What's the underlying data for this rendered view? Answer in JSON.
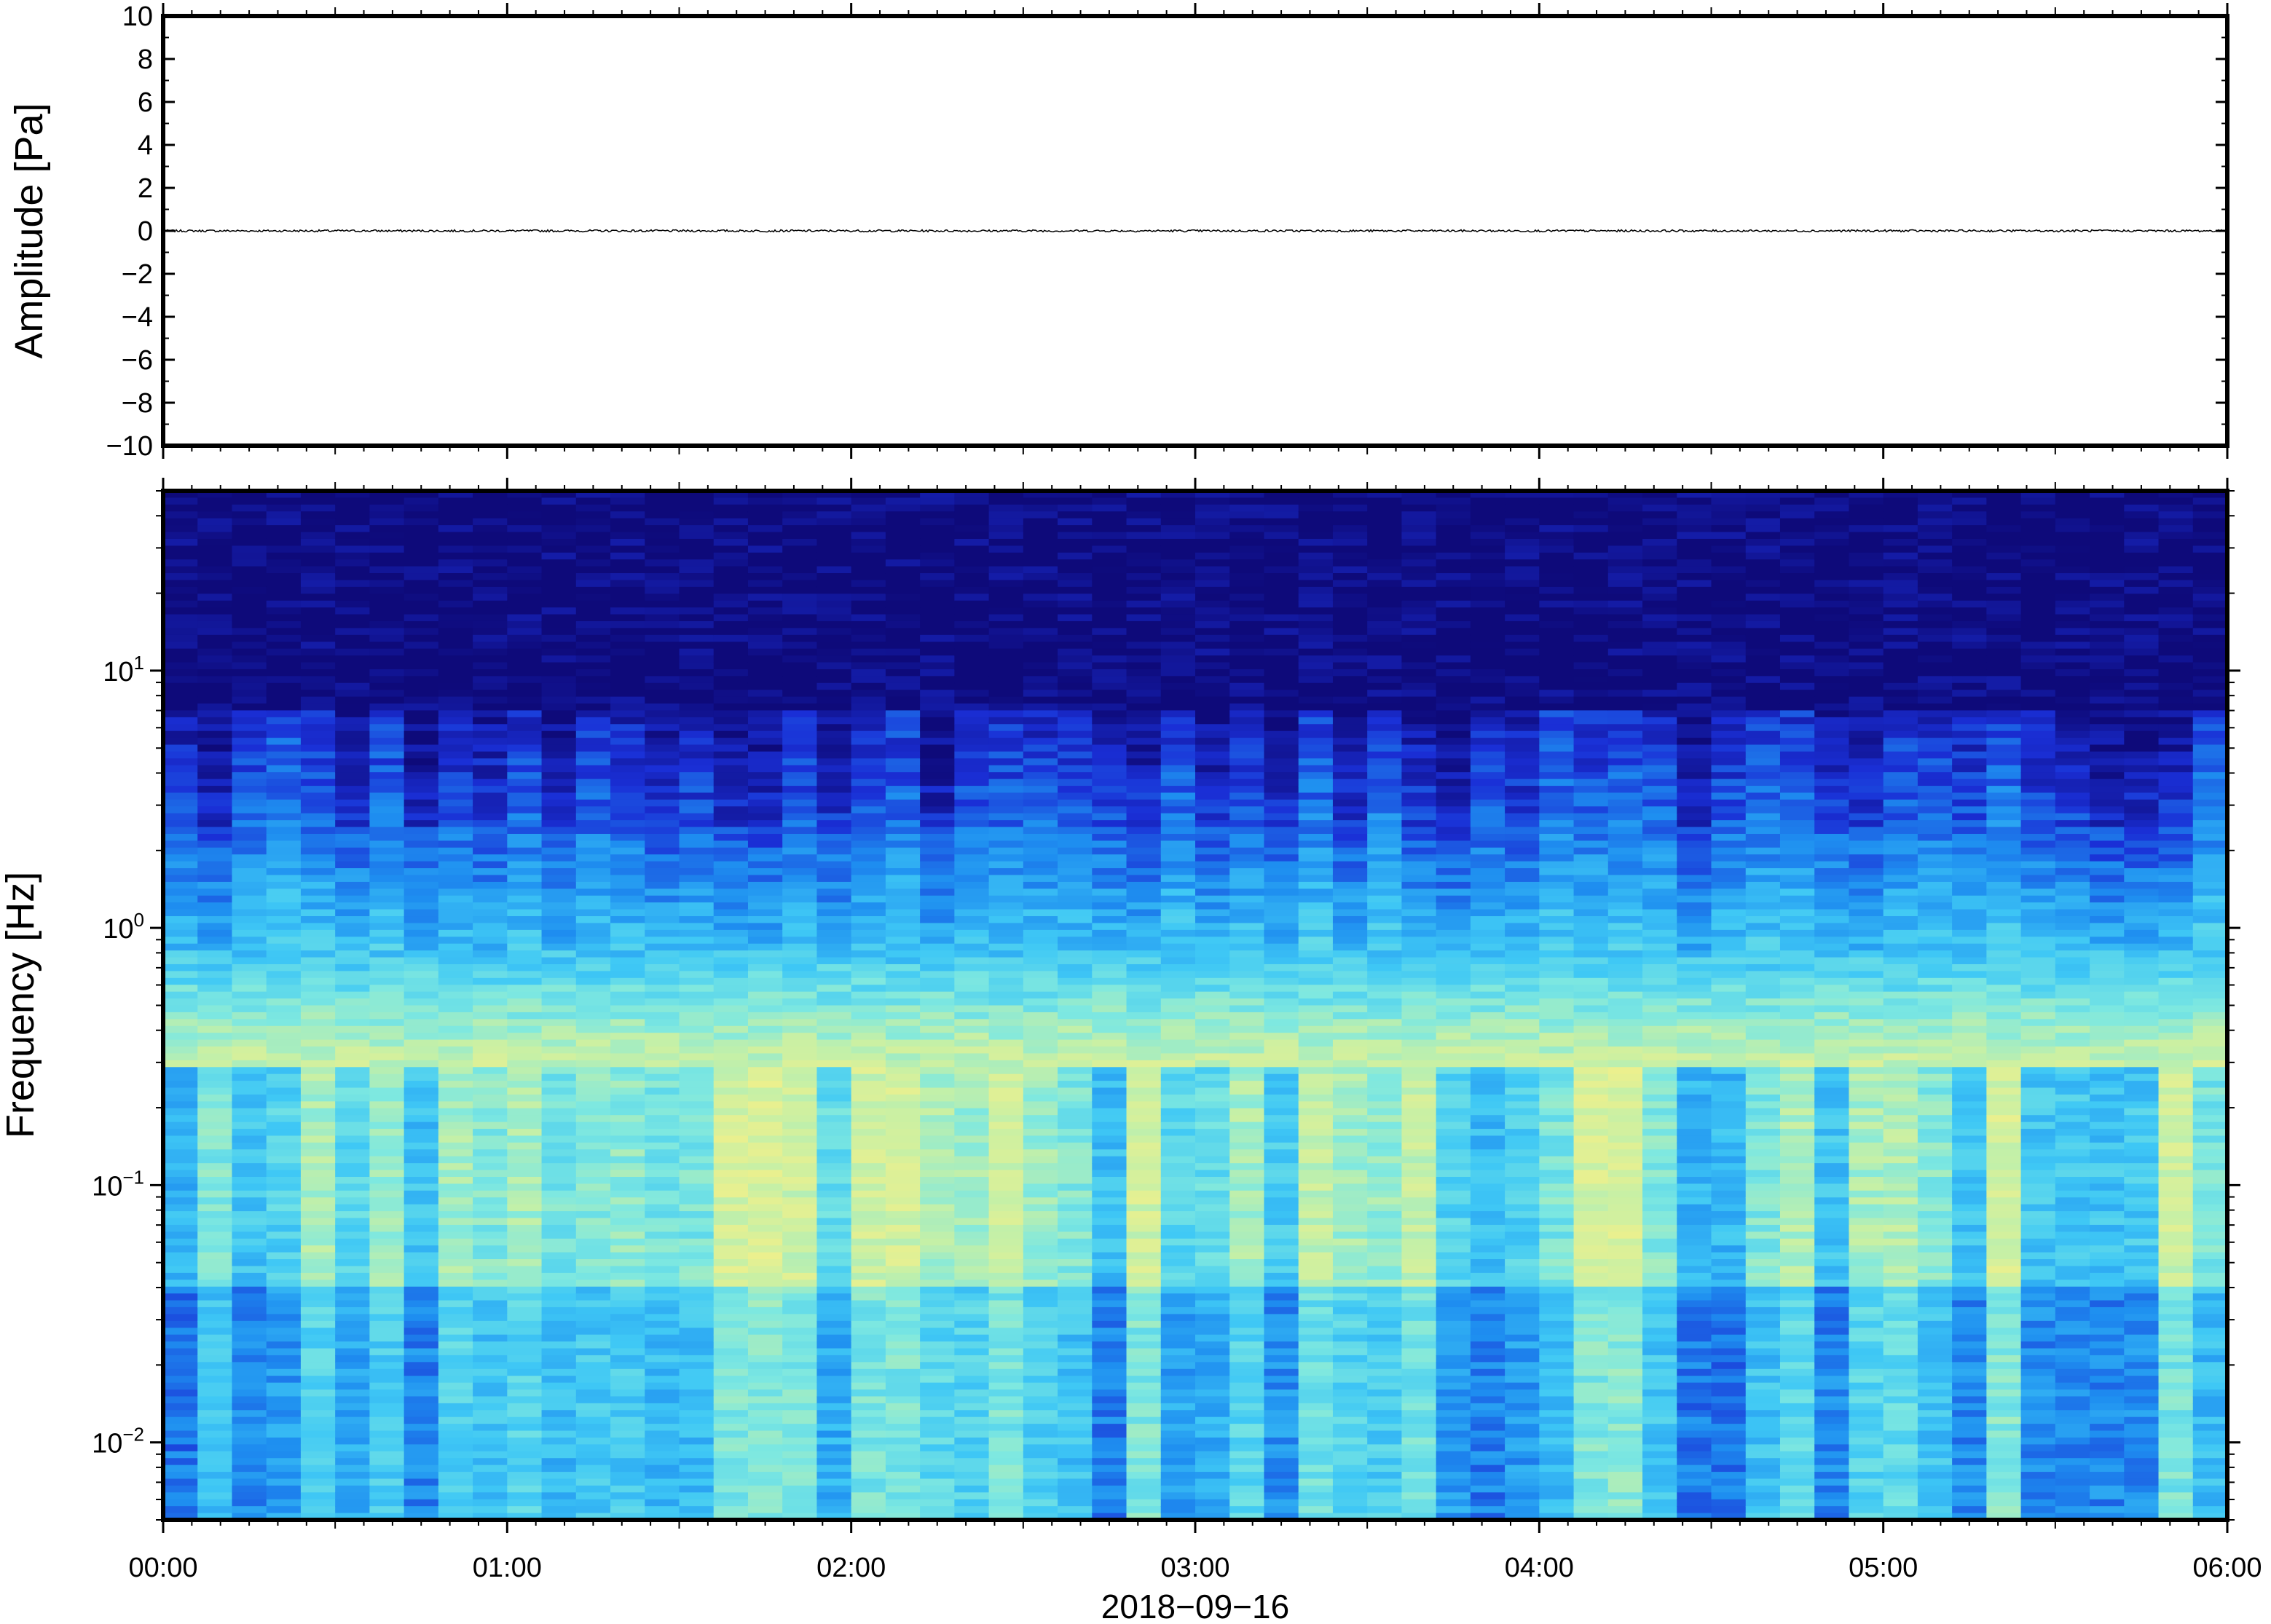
{
  "chart_data": [
    {
      "type": "line",
      "panel": "waveform",
      "ylabel": "Amplitude [Pa]",
      "ylim": [
        -10,
        10
      ],
      "yticks": [
        10,
        8,
        6,
        4,
        2,
        0,
        -2,
        -4,
        -6,
        -8,
        -10
      ],
      "ytick_labels": [
        "10",
        "8",
        "6",
        "4",
        "2",
        "0",
        "−2",
        "−4",
        "−6",
        "−8",
        "−10"
      ],
      "x_range_hours": [
        0,
        6
      ],
      "series": [
        {
          "trace": "near-zero noise trace",
          "approx_amplitude": 0.05,
          "color": "#000000"
        }
      ],
      "grid": false
    },
    {
      "type": "heatmap",
      "panel": "spectrogram",
      "ylabel": "Frequency [Hz]",
      "yscale": "log",
      "ylim": [
        0.005,
        50
      ],
      "yticks": [
        10,
        1,
        0.1,
        0.01
      ],
      "ytick_labels": [
        {
          "base": "10",
          "exp": "1"
        },
        {
          "base": "10",
          "exp": "0"
        },
        {
          "base": "10",
          "exp": "−1"
        },
        {
          "base": "10",
          "exp": "−2"
        }
      ],
      "colormap": [
        "#0e0a7a",
        "#1a2fd6",
        "#1e8ef0",
        "#3fc8f5",
        "#7ee8e0",
        "#c6f0a6",
        "#f1f08a",
        "#f7c874"
      ],
      "time_columns": 60,
      "dominant_band_hz": 0.2,
      "grid": false
    }
  ],
  "xaxis": {
    "tick_labels": [
      "00:00",
      "01:00",
      "02:00",
      "03:00",
      "04:00",
      "05:00",
      "06:00"
    ],
    "date_label": "2018−09−16"
  }
}
